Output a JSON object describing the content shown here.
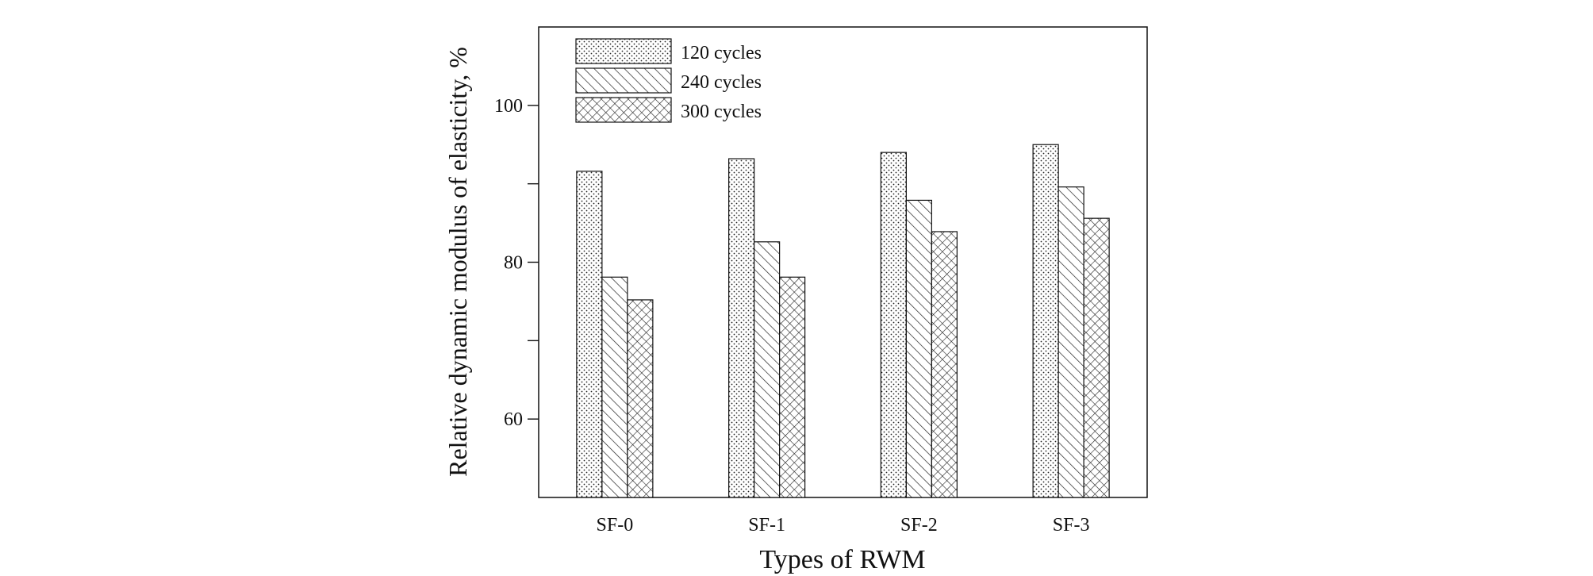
{
  "chart_data": {
    "type": "bar",
    "xlabel": "Types of RWM",
    "ylabel": "Relative dynamic modulus of elasticity, %",
    "categories": [
      "SF-0",
      "SF-1",
      "SF-2",
      "SF-3"
    ],
    "series": [
      {
        "name": "120 cycles",
        "pattern": "dots",
        "values": [
          91.6,
          93.2,
          94.0,
          95.0
        ]
      },
      {
        "name": "240 cycles",
        "pattern": "diagonal",
        "values": [
          78.1,
          82.6,
          87.9,
          89.6
        ]
      },
      {
        "name": "300 cycles",
        "pattern": "crosshatch",
        "values": [
          75.2,
          78.1,
          83.9,
          85.6
        ]
      }
    ],
    "ylim": [
      50,
      110
    ],
    "yticks_major": [
      60,
      80,
      100
    ],
    "yticks_minor": [
      70,
      90
    ],
    "grid": false,
    "legend_position": "top-left",
    "colors": {
      "bar_fill": "#ffffff",
      "stroke": "#111111",
      "pattern": "#222222"
    }
  }
}
